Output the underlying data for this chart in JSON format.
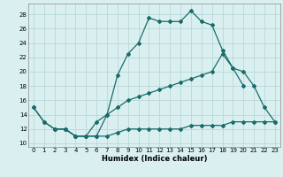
{
  "xlabel": "Humidex (Indice chaleur)",
  "bg_color": "#daf0f0",
  "grid_color": "#b8d8d8",
  "line_color": "#1a6b6b",
  "xlim": [
    -0.5,
    23.5
  ],
  "ylim": [
    9.5,
    29.5
  ],
  "xticks": [
    0,
    1,
    2,
    3,
    4,
    5,
    6,
    7,
    8,
    9,
    10,
    11,
    12,
    13,
    14,
    15,
    16,
    17,
    18,
    19,
    20,
    21,
    22,
    23
  ],
  "yticks": [
    10,
    12,
    14,
    16,
    18,
    20,
    22,
    24,
    26,
    28
  ],
  "line1_x": [
    0,
    1,
    2,
    3,
    4,
    5,
    6,
    7,
    8,
    9,
    10,
    11,
    12,
    13,
    14,
    15,
    16,
    17,
    18,
    19,
    20
  ],
  "line1_y": [
    15,
    13,
    12,
    12,
    11,
    11,
    11,
    14,
    19.5,
    22.5,
    24,
    27.5,
    27,
    27,
    27,
    28.5,
    27,
    26.5,
    23,
    20.5,
    18
  ],
  "line2_x": [
    0,
    1,
    2,
    3,
    4,
    5,
    6,
    7,
    8,
    9,
    10,
    11,
    12,
    13,
    14,
    15,
    16,
    17,
    18,
    19,
    20,
    21,
    22,
    23
  ],
  "line2_y": [
    15,
    13,
    12,
    12,
    11,
    11,
    13,
    14,
    15,
    16,
    16.5,
    17,
    17.5,
    18,
    18.5,
    19,
    19.5,
    20,
    22.5,
    20.5,
    20,
    18,
    15,
    13
  ],
  "line3_x": [
    2,
    3,
    4,
    5,
    6,
    7,
    8,
    9,
    10,
    11,
    12,
    13,
    14,
    15,
    16,
    17,
    18,
    19,
    20,
    21,
    22,
    23
  ],
  "line3_y": [
    12,
    12,
    11,
    11,
    11,
    11,
    11.5,
    12,
    12,
    12,
    12,
    12,
    12,
    12.5,
    12.5,
    12.5,
    12.5,
    13,
    13,
    13,
    13,
    13
  ]
}
